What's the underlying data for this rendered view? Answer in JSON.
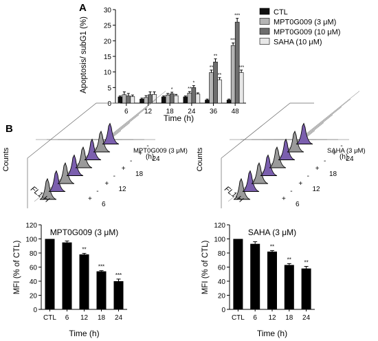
{
  "panels": {
    "a": "A",
    "b": "B"
  },
  "colors": {
    "ctl": "#111111",
    "low": "#b4b4b4",
    "high": "#6e6e6e",
    "saha": "#e8e8e8",
    "purple": "#7b5fae",
    "grey_peak": "#9a9a9a",
    "bar": "#000000"
  },
  "histograms": {
    "y_label": "Counts",
    "x_label": "FL1-H",
    "hours": [
      "6",
      "12",
      "18",
      "24"
    ],
    "hour_unit": "(h)",
    "marks": [
      "-",
      "+"
    ],
    "left_title": "MPT0G009 (3 μM)",
    "right_title": "SAHA (3 μM)"
  },
  "chart_data": [
    {
      "type": "bar",
      "categories": [
        "6",
        "12",
        "18",
        "24",
        "36",
        "48"
      ],
      "xlabel": "Time (h)",
      "ylabel": "Apoptosis/ subG1 (%)",
      "ylim": [
        0,
        30
      ],
      "yticks": [
        "0",
        "5",
        "10",
        "15",
        "20",
        "25",
        "30"
      ],
      "legend_position": "right",
      "series": [
        {
          "name": "CTL",
          "values": [
            2.0,
            1.3,
            2.0,
            2.0,
            1.0,
            1.0
          ],
          "errors": [
            0.3,
            0.3,
            0.3,
            0.3,
            0.3,
            0.3
          ],
          "sig": [
            "",
            "",
            "",
            "",
            "",
            ""
          ]
        },
        {
          "name": "MPT0G009 (3 μM)",
          "values": [
            2.7,
            1.8,
            2.6,
            3.2,
            9.8,
            18.5
          ],
          "errors": [
            0.9,
            0.6,
            0.5,
            0.5,
            0.8,
            0.8
          ],
          "sig": [
            "",
            "",
            "",
            "**",
            "**",
            "***"
          ]
        },
        {
          "name": "MPT0G009 (10 μM)",
          "values": [
            2.3,
            2.7,
            3.0,
            5.0,
            13.2,
            26.0
          ],
          "errors": [
            0.8,
            0.9,
            0.5,
            0.6,
            1.0,
            1.2
          ],
          "sig": [
            "",
            "",
            "*",
            "*",
            "**",
            "***"
          ]
        },
        {
          "name": "SAHA (10 μM)",
          "values": [
            2.1,
            2.8,
            2.4,
            2.9,
            7.5,
            9.8
          ],
          "errors": [
            0.5,
            0.8,
            0.4,
            0.4,
            0.7,
            0.8
          ],
          "sig": [
            "",
            "",
            "",
            "",
            "**",
            "***"
          ]
        }
      ]
    },
    {
      "type": "bar",
      "title": "MPT0G009 (3 μM)",
      "categories": [
        "CTL",
        "6",
        "12",
        "18",
        "24"
      ],
      "values": [
        100,
        95,
        78,
        54,
        40
      ],
      "errors": [
        0,
        2,
        1.5,
        1,
        3
      ],
      "sig": [
        "",
        "",
        "**",
        "***",
        "***"
      ],
      "xlabel": "Time (h)",
      "ylabel": "MFI (% of CTL)",
      "ylim": [
        0,
        120
      ],
      "yticks": [
        "0",
        "20",
        "40",
        "60",
        "80",
        "100",
        "120"
      ]
    },
    {
      "type": "bar",
      "title": "SAHA (3 μM)",
      "categories": [
        "CTL",
        "6",
        "12",
        "18",
        "24"
      ],
      "values": [
        100,
        93,
        82,
        63,
        58
      ],
      "errors": [
        0,
        3,
        1.5,
        2,
        3
      ],
      "sig": [
        "",
        "",
        "**",
        "**",
        "**"
      ],
      "xlabel": "Time (h)",
      "ylabel": "MFI (% of CTL)",
      "ylim": [
        0,
        120
      ],
      "yticks": [
        "0",
        "20",
        "40",
        "60",
        "80",
        "100",
        "120"
      ]
    }
  ]
}
